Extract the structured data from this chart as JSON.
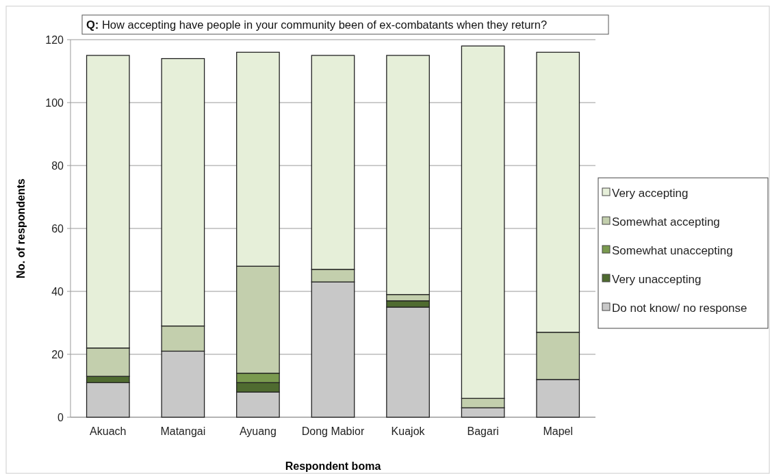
{
  "chart_data": {
    "type": "bar",
    "title": "Q: How accepting have people in your community been of ex-combatants when they return?",
    "xlabel": "Respondent boma",
    "ylabel": "No. of respondents",
    "categories": [
      "Akuach",
      "Matangai",
      "Ayuang",
      "Dong Mabior",
      "Kuajok",
      "Bagari",
      "Mapel"
    ],
    "stacked": true,
    "series": [
      {
        "name": "Do not know/ no response",
        "color": "#c8c8c8",
        "values": [
          11,
          21,
          8,
          43,
          35,
          3,
          12
        ]
      },
      {
        "name": "Very unaccepting",
        "color": "#4f6b30",
        "values": [
          2,
          0,
          3,
          0,
          2,
          0,
          0
        ]
      },
      {
        "name": "Somewhat unaccepting",
        "color": "#7a9a4f",
        "values": [
          0,
          0,
          3,
          0,
          0,
          0,
          0
        ]
      },
      {
        "name": "Somewhat accepting",
        "color": "#c3cfad",
        "values": [
          9,
          8,
          34,
          4,
          2,
          3,
          15
        ]
      },
      {
        "name": "Very accepting",
        "color": "#e6efd9",
        "values": [
          93,
          85,
          68,
          68,
          76,
          112,
          89
        ]
      }
    ],
    "ylim": [
      0,
      120
    ],
    "yticks": [
      0,
      20,
      40,
      60,
      80,
      100,
      120
    ],
    "grid": "y",
    "legend": "right"
  }
}
